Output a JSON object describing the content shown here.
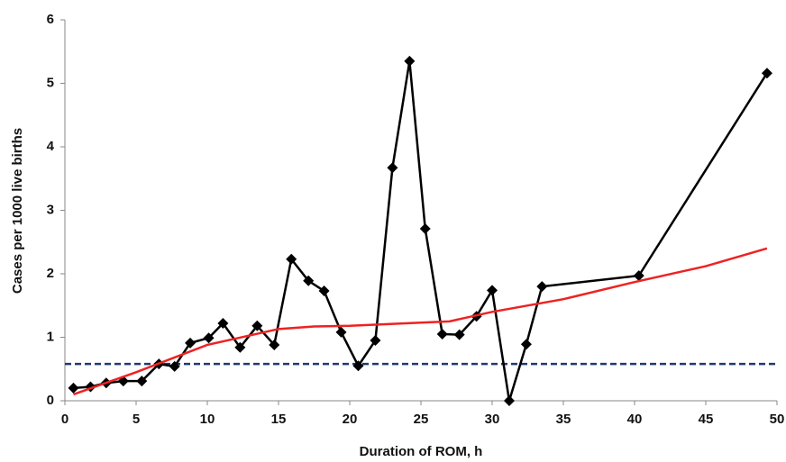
{
  "chart_data": {
    "type": "line",
    "x_label": "Duration of ROM, h",
    "y_label": "Cases per 1000 live births",
    "xlim": [
      0,
      50
    ],
    "xticks": [
      0,
      5,
      10,
      15,
      20,
      25,
      30,
      35,
      40,
      45,
      50
    ],
    "ylim": [
      0,
      6
    ],
    "yticks": [
      0,
      1,
      2,
      3,
      4,
      5,
      6
    ],
    "series": [
      {
        "color": "#000000",
        "marker": "diamond",
        "x": [
          0.6,
          1.8,
          2.9,
          4.1,
          5.4,
          6.6,
          7.7,
          8.8,
          10.1,
          11.1,
          12.3,
          13.5,
          14.7,
          15.9,
          17.1,
          18.2,
          19.4,
          20.6,
          21.8,
          23.0,
          24.2,
          25.3,
          26.5,
          27.7,
          28.9,
          30.0,
          31.2,
          32.4,
          33.5,
          40.3,
          49.3
        ],
        "values": [
          0.2,
          0.22,
          0.28,
          0.31,
          0.31,
          0.58,
          0.54,
          0.91,
          0.99,
          1.22,
          0.84,
          1.18,
          0.88,
          2.23,
          1.89,
          1.73,
          1.08,
          0.55,
          0.95,
          3.67,
          5.35,
          2.71,
          1.05,
          1.04,
          1.33,
          1.74,
          0,
          0.89,
          1.8,
          1.97,
          5.16
        ]
      },
      {
        "color": "#ee2222",
        "x": [
          0.6,
          5,
          10,
          15,
          17.5,
          20,
          25,
          27,
          30,
          35,
          40,
          45,
          49.3
        ],
        "values": [
          0.1,
          0.45,
          0.88,
          1.13,
          1.17,
          1.18,
          1.23,
          1.25,
          1.4,
          1.6,
          1.87,
          2.12,
          2.4
        ]
      }
    ],
    "reference_line": {
      "y": 0.58,
      "color": "#1f3a6e",
      "dashed": true
    }
  }
}
